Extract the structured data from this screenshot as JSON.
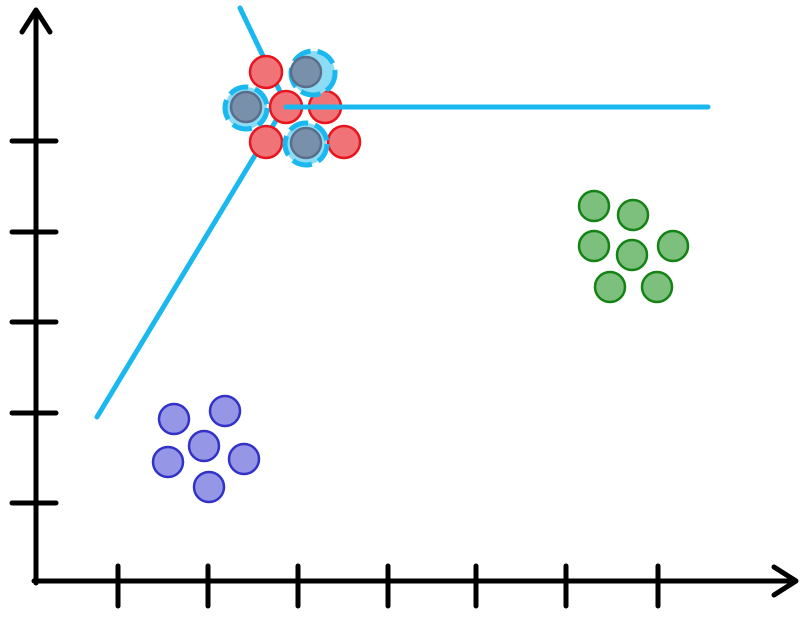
{
  "colors": {
    "axis": "#000000",
    "boundary": "#1ab8ee",
    "red_fill": "#f07378",
    "red_stroke": "#e8141e",
    "green_fill": "#7dbf7d",
    "green_stroke": "#148214",
    "blue_fill": "#9696e6",
    "blue_stroke": "#3232c8",
    "centroid_fill": "#7890aa",
    "centroid_stroke": "#5a6e8c",
    "centroid_ring": "#1ab8ee",
    "centroid_halo": "#8cdcf5"
  },
  "icons": {
    "x_axis_arrow": "arrowhead",
    "y_axis_arrow": "arrowhead"
  },
  "x_ticks": 7,
  "y_ticks": 5,
  "clusters": [
    {
      "name": "red",
      "points": 8
    },
    {
      "name": "green",
      "points": 7
    },
    {
      "name": "blue",
      "points": 6
    }
  ],
  "centroids": 3,
  "boundary_lines": 3
}
